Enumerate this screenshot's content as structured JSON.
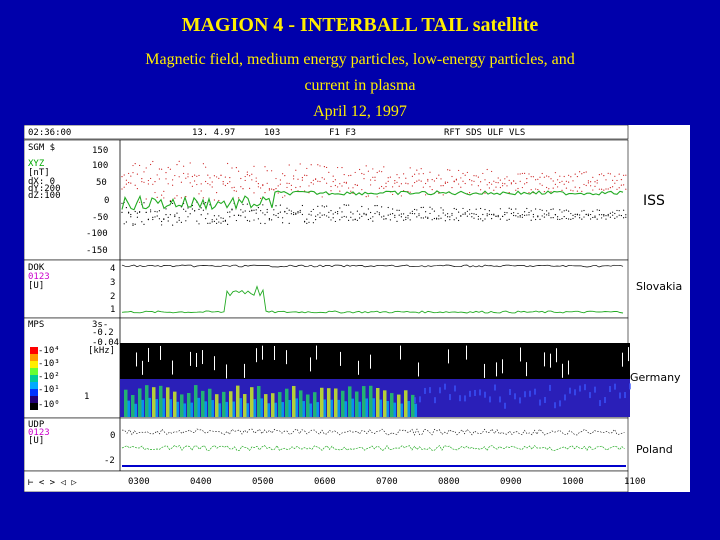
{
  "header": {
    "title": "MAGION 4 - INTERBALL TAIL satellite",
    "subtitle_line1": "Magnetic field, medium energy particles, low-energy particles, and",
    "subtitle_line2": "current in plasma",
    "date": "April 12, 1997"
  },
  "plot": {
    "top_bar": {
      "time": "02:36:00",
      "date_code": "13. 4.97",
      "orbit": "103",
      "filters": "F1 F3",
      "modes": "RFT SDS ULF VLS"
    },
    "sgm_panel": {
      "name": "SGM $",
      "xyz": "XYZ",
      "unit": "[nT]",
      "dx": "dX: 0",
      "dy": "dY:200",
      "dz": "dZ:100",
      "ticks": [
        "150",
        "100",
        "50",
        "0",
        "-50",
        "-100",
        "-150"
      ]
    },
    "dok_panel": {
      "name": "DOK",
      "code": "0123",
      "unit": "[U]",
      "ticks": [
        "4",
        "3",
        "2",
        "1"
      ]
    },
    "mps_panel": {
      "name": "MPS",
      "scale_labels": [
        "-10⁴",
        "-10³",
        "-10²",
        "-10¹",
        "-10⁰"
      ],
      "side_labels": [
        "3s-",
        "-0.2",
        "[kHz]",
        "-0.04"
      ],
      "mark": "1",
      "bar_colors": [
        "#ff0000",
        "#ff9900",
        "#ffee00",
        "#66ff33",
        "#00cc99",
        "#00aaff",
        "#0033ff",
        "#220077",
        "#000000"
      ]
    },
    "udp_panel": {
      "name": "UDP",
      "code": "0123",
      "unit": "[U]",
      "ticks": [
        "0",
        "-2"
      ]
    },
    "nav": {
      "symbols": "⊢ < > ◁ ▷",
      "time_ticks": [
        "0300",
        "0400",
        "0500",
        "0600",
        "0700",
        "0800",
        "0900",
        "1000",
        "1100"
      ]
    }
  },
  "regions": {
    "iss": "ISS",
    "slovakia": "Slovakia",
    "germany": "Germany",
    "poland": "Poland"
  }
}
